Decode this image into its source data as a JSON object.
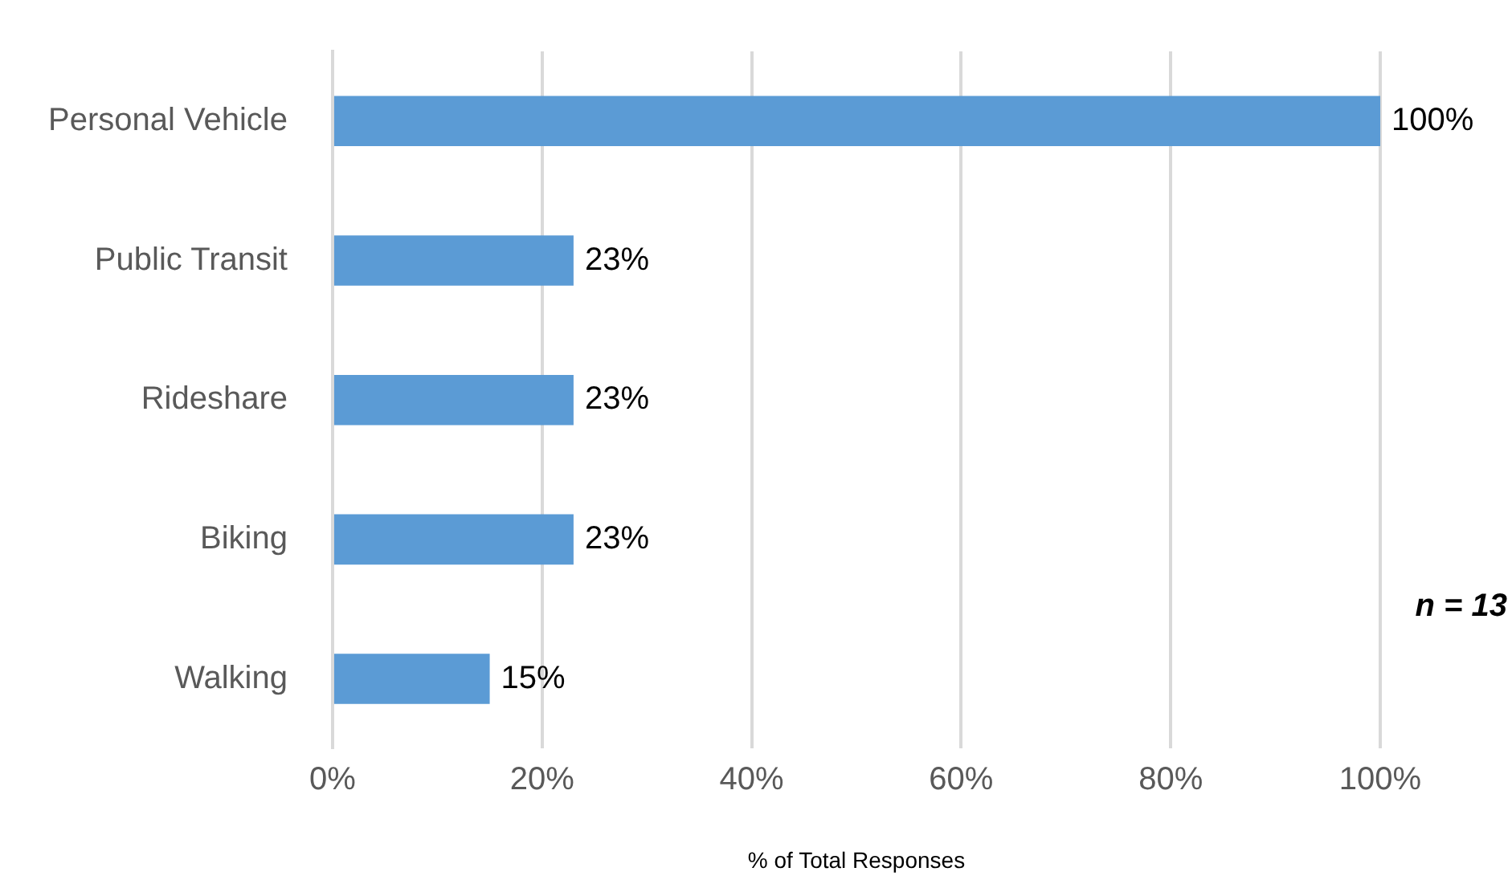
{
  "chart_data": {
    "type": "bar",
    "orientation": "horizontal",
    "xlabel": "% of Total Responses",
    "categories": [
      "Personal Vehicle",
      "Public Transit",
      "Rideshare",
      "Biking",
      "Walking"
    ],
    "values": [
      100,
      23,
      23,
      23,
      15
    ],
    "color": "#5b9bd5",
    "value_labels": [
      "100%",
      "23%",
      "23%",
      "23%",
      "15%"
    ],
    "xlim": [
      0,
      100
    ],
    "xticks": [
      {
        "value": 0,
        "label": "0%"
      },
      {
        "value": 20,
        "label": "20%"
      },
      {
        "value": 40,
        "label": "40%"
      },
      {
        "value": 60,
        "label": "60%"
      },
      {
        "value": 80,
        "label": "80%"
      },
      {
        "value": 100,
        "label": "100%"
      }
    ],
    "grid": "x",
    "legend": false,
    "annotations": [
      "n = 13"
    ]
  }
}
